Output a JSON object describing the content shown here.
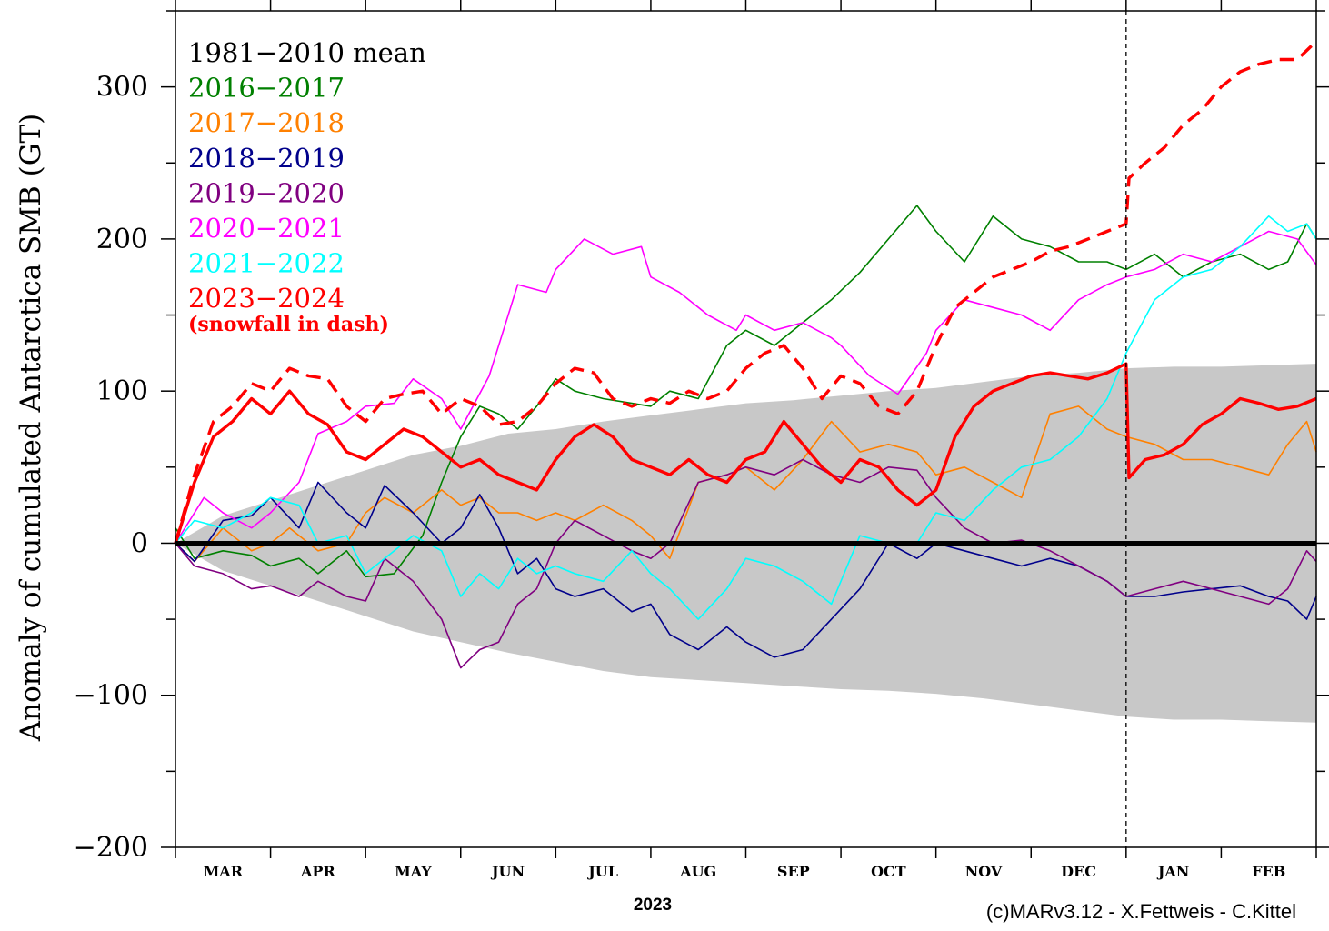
{
  "chart_data": {
    "type": "line",
    "ylabel": "Anomaly of cumulated Antarctica SMB (GT)",
    "xlabel": "2023",
    "credit": "(c)MARv3.12 - X.Fettweis - C.Kittel",
    "ylim": [
      -200,
      350
    ],
    "xlim": [
      0,
      12
    ],
    "y_ticks": [
      -200,
      -100,
      0,
      100,
      200,
      300
    ],
    "months": [
      "MAR",
      "APR",
      "MAY",
      "JUN",
      "JUL",
      "AUG",
      "SEP",
      "OCT",
      "NOV",
      "DEC",
      "JAN",
      "FEB"
    ],
    "year_boundary": 10,
    "grid": false,
    "legend_placement": "top-left",
    "envelope": {
      "color": "#c8c8c8",
      "x": [
        0,
        0.5,
        1,
        1.5,
        2,
        2.5,
        3,
        3.5,
        4,
        4.5,
        5,
        5.5,
        6,
        6.5,
        7,
        7.5,
        8,
        8.5,
        9,
        9.5,
        10,
        10.5,
        11,
        11.5,
        12
      ],
      "upper": [
        0,
        18,
        28,
        38,
        48,
        58,
        64,
        72,
        75,
        80,
        84,
        88,
        92,
        94,
        97,
        100,
        102,
        106,
        110,
        112,
        115,
        116,
        116,
        117,
        118
      ],
      "lower": [
        0,
        -18,
        -28,
        -38,
        -48,
        -58,
        -65,
        -72,
        -78,
        -84,
        -88,
        -90,
        -92,
        -94,
        -96,
        -97,
        -99,
        -102,
        -106,
        -110,
        -114,
        -116,
        -116,
        -117,
        -118
      ]
    },
    "mean_line": {
      "name": "1981−2010 mean",
      "color": "#000000",
      "value": 0
    },
    "series": [
      {
        "name": "2016−2017",
        "color": "#008000",
        "width": 1.6,
        "x": [
          0,
          0.2,
          0.5,
          0.8,
          1,
          1.3,
          1.5,
          1.8,
          2,
          2.3,
          2.6,
          2.8,
          3,
          3.2,
          3.4,
          3.6,
          3.8,
          4,
          4.2,
          4.5,
          4.8,
          5,
          5.2,
          5.5,
          5.8,
          6,
          6.3,
          6.6,
          6.9,
          7.2,
          7.5,
          7.8,
          8,
          8.3,
          8.6,
          8.9,
          9.2,
          9.5,
          9.8,
          10,
          10.3,
          10.6,
          10.9,
          11.2,
          11.5,
          11.7,
          11.9,
          12
        ],
        "y": [
          10,
          -10,
          -5,
          -8,
          -15,
          -10,
          -20,
          -5,
          -22,
          -20,
          5,
          40,
          70,
          90,
          85,
          75,
          90,
          108,
          100,
          95,
          92,
          90,
          100,
          95,
          130,
          140,
          130,
          145,
          160,
          178,
          200,
          222,
          205,
          185,
          215,
          200,
          195,
          185,
          185,
          180,
          190,
          175,
          185,
          190,
          180,
          185,
          210,
          200
        ]
      },
      {
        "name": "2017−2018",
        "color": "#ff8000",
        "width": 1.6,
        "x": [
          0,
          0.2,
          0.5,
          0.8,
          1,
          1.2,
          1.5,
          1.8,
          2,
          2.2,
          2.5,
          2.8,
          3,
          3.2,
          3.4,
          3.6,
          3.8,
          4,
          4.2,
          4.5,
          4.8,
          5,
          5.2,
          5.5,
          5.8,
          6,
          6.3,
          6.6,
          6.9,
          7.2,
          7.5,
          7.8,
          8,
          8.3,
          8.6,
          8.9,
          9.2,
          9.5,
          9.8,
          10,
          10.3,
          10.6,
          10.9,
          11.2,
          11.5,
          11.7,
          11.9,
          12
        ],
        "y": [
          0,
          -12,
          10,
          -5,
          0,
          10,
          -5,
          0,
          20,
          30,
          20,
          35,
          25,
          30,
          20,
          20,
          15,
          20,
          15,
          25,
          15,
          5,
          -10,
          40,
          45,
          50,
          35,
          55,
          80,
          60,
          65,
          60,
          45,
          50,
          40,
          30,
          85,
          90,
          75,
          70,
          65,
          55,
          55,
          50,
          45,
          65,
          80,
          60
        ]
      },
      {
        "name": "2018−2019",
        "color": "#00008b",
        "width": 1.6,
        "x": [
          0,
          0.2,
          0.5,
          0.8,
          1,
          1.3,
          1.5,
          1.8,
          2,
          2.2,
          2.5,
          2.8,
          3,
          3.2,
          3.4,
          3.6,
          3.8,
          4,
          4.2,
          4.5,
          4.8,
          5,
          5.2,
          5.5,
          5.8,
          6,
          6.3,
          6.6,
          6.9,
          7.2,
          7.5,
          7.8,
          8,
          8.3,
          8.6,
          8.9,
          9.2,
          9.5,
          9.8,
          10,
          10.3,
          10.6,
          10.9,
          11.2,
          11.5,
          11.7,
          11.9,
          12
        ],
        "y": [
          0,
          -12,
          15,
          18,
          30,
          10,
          40,
          20,
          10,
          38,
          20,
          0,
          10,
          32,
          10,
          -20,
          -10,
          -30,
          -35,
          -30,
          -45,
          -40,
          -60,
          -70,
          -55,
          -65,
          -75,
          -70,
          -50,
          -30,
          0,
          -10,
          0,
          -5,
          -10,
          -15,
          -10,
          -15,
          -25,
          -35,
          -35,
          -32,
          -30,
          -28,
          -35,
          -38,
          -50,
          -35
        ]
      },
      {
        "name": "2019−2020",
        "color": "#800080",
        "width": 1.6,
        "x": [
          0,
          0.2,
          0.5,
          0.8,
          1,
          1.3,
          1.5,
          1.8,
          2,
          2.2,
          2.5,
          2.8,
          3,
          3.2,
          3.4,
          3.6,
          3.8,
          4,
          4.2,
          4.5,
          4.8,
          5,
          5.2,
          5.5,
          5.8,
          6,
          6.3,
          6.6,
          6.9,
          7.2,
          7.5,
          7.8,
          8,
          8.3,
          8.6,
          8.9,
          9.2,
          9.5,
          9.8,
          10,
          10.3,
          10.6,
          10.9,
          11.2,
          11.5,
          11.7,
          11.9,
          12
        ],
        "y": [
          0,
          -15,
          -20,
          -30,
          -28,
          -35,
          -25,
          -35,
          -38,
          -10,
          -25,
          -50,
          -82,
          -70,
          -65,
          -40,
          -30,
          0,
          15,
          5,
          -5,
          -10,
          0,
          40,
          45,
          50,
          45,
          55,
          45,
          40,
          50,
          48,
          30,
          10,
          0,
          2,
          -5,
          -15,
          -25,
          -35,
          -30,
          -25,
          -30,
          -35,
          -40,
          -30,
          -5,
          -12
        ]
      },
      {
        "name": "2020−2021",
        "color": "#ff00ff",
        "width": 1.6,
        "x": [
          0,
          0.3,
          0.5,
          0.8,
          1,
          1.3,
          1.5,
          1.8,
          2,
          2.3,
          2.5,
          2.8,
          3,
          3.3,
          3.6,
          3.9,
          4,
          4.3,
          4.6,
          4.9,
          5,
          5.3,
          5.6,
          5.9,
          6,
          6.3,
          6.6,
          6.9,
          7,
          7.3,
          7.6,
          7.9,
          8,
          8.3,
          8.6,
          8.9,
          9.2,
          9.5,
          9.8,
          10,
          10.3,
          10.6,
          10.9,
          11.2,
          11.5,
          11.8,
          12
        ],
        "y": [
          0,
          30,
          20,
          10,
          20,
          40,
          72,
          80,
          90,
          92,
          108,
          95,
          75,
          110,
          170,
          165,
          180,
          200,
          190,
          195,
          175,
          165,
          150,
          140,
          150,
          140,
          145,
          135,
          130,
          110,
          98,
          125,
          140,
          160,
          155,
          150,
          140,
          160,
          170,
          175,
          180,
          190,
          185,
          195,
          205,
          200,
          183
        ]
      },
      {
        "name": "2021−2022",
        "color": "#00ffff",
        "width": 1.6,
        "x": [
          0,
          0.2,
          0.5,
          0.8,
          1,
          1.3,
          1.5,
          1.8,
          2,
          2.2,
          2.5,
          2.8,
          3,
          3.2,
          3.4,
          3.6,
          3.8,
          4,
          4.2,
          4.5,
          4.8,
          5,
          5.2,
          5.5,
          5.8,
          6,
          6.3,
          6.6,
          6.9,
          7.2,
          7.5,
          7.8,
          8,
          8.3,
          8.6,
          8.9,
          9.2,
          9.5,
          9.8,
          10,
          10.3,
          10.6,
          10.9,
          11.2,
          11.5,
          11.7,
          11.9,
          12
        ],
        "y": [
          0,
          15,
          10,
          20,
          30,
          25,
          0,
          5,
          -20,
          -10,
          5,
          -5,
          -35,
          -20,
          -30,
          -10,
          -20,
          -15,
          -20,
          -25,
          -5,
          -20,
          -30,
          -50,
          -30,
          -10,
          -15,
          -25,
          -40,
          5,
          0,
          0,
          20,
          15,
          35,
          50,
          55,
          70,
          95,
          125,
          160,
          175,
          180,
          195,
          215,
          205,
          210,
          200
        ]
      },
      {
        "name": "2023−2024",
        "color": "#ff0000",
        "width": 3.4,
        "x": [
          0,
          0.2,
          0.4,
          0.6,
          0.8,
          1,
          1.2,
          1.4,
          1.6,
          1.8,
          2,
          2.2,
          2.4,
          2.6,
          2.8,
          3,
          3.2,
          3.4,
          3.6,
          3.8,
          4,
          4.2,
          4.4,
          4.6,
          4.8,
          5,
          5.2,
          5.4,
          5.6,
          5.8,
          6,
          6.2,
          6.4,
          6.6,
          6.8,
          7,
          7.2,
          7.4,
          7.6,
          7.8,
          8,
          8.2,
          8.4,
          8.6,
          8.8,
          9,
          9.2,
          9.4,
          9.6,
          9.8,
          10,
          10.03,
          10.2,
          10.4,
          10.6,
          10.8,
          11,
          11.2,
          11.4,
          11.6,
          11.8,
          12
        ],
        "y": [
          0,
          40,
          70,
          80,
          95,
          85,
          100,
          85,
          78,
          60,
          55,
          65,
          75,
          70,
          60,
          50,
          55,
          45,
          40,
          35,
          55,
          70,
          78,
          70,
          55,
          50,
          45,
          55,
          45,
          40,
          55,
          60,
          80,
          65,
          50,
          40,
          55,
          50,
          35,
          25,
          35,
          70,
          90,
          100,
          105,
          110,
          112,
          110,
          108,
          112,
          118,
          43,
          55,
          58,
          65,
          78,
          85,
          95,
          92,
          88,
          90,
          95
        ]
      },
      {
        "name": "2023−2024 snowfall",
        "color": "#ff0000",
        "width": 3.4,
        "dash": true,
        "x": [
          0,
          0.2,
          0.4,
          0.6,
          0.8,
          1,
          1.2,
          1.4,
          1.6,
          1.8,
          2,
          2.2,
          2.4,
          2.6,
          2.8,
          3,
          3.2,
          3.4,
          3.6,
          3.8,
          4,
          4.2,
          4.4,
          4.6,
          4.8,
          5,
          5.2,
          5.4,
          5.6,
          5.8,
          6,
          6.2,
          6.4,
          6.6,
          6.8,
          7,
          7.2,
          7.4,
          7.6,
          7.8,
          8,
          8.2,
          8.4,
          8.6,
          8.8,
          9,
          9.2,
          9.4,
          9.6,
          9.8,
          10,
          10.03,
          10.2,
          10.4,
          10.6,
          10.8,
          11,
          11.2,
          11.4,
          11.6,
          11.8,
          12
        ],
        "y": [
          0,
          45,
          80,
          90,
          105,
          100,
          115,
          110,
          108,
          90,
          80,
          95,
          98,
          100,
          85,
          95,
          90,
          78,
          80,
          90,
          105,
          115,
          112,
          95,
          90,
          95,
          92,
          100,
          95,
          100,
          115,
          125,
          130,
          115,
          95,
          110,
          105,
          90,
          85,
          100,
          130,
          155,
          165,
          175,
          180,
          185,
          192,
          195,
          200,
          205,
          210,
          240,
          250,
          260,
          275,
          285,
          300,
          310,
          315,
          318,
          318,
          330
        ]
      }
    ],
    "legend": [
      {
        "label": "1981−2010 mean",
        "color": "#000000"
      },
      {
        "label": "2016−2017",
        "color": "#008000"
      },
      {
        "label": "2017−2018",
        "color": "#ff8000"
      },
      {
        "label": "2018−2019",
        "color": "#00008b"
      },
      {
        "label": "2019−2020",
        "color": "#800080"
      },
      {
        "label": "2020−2021",
        "color": "#ff00ff"
      },
      {
        "label": "2021−2022",
        "color": "#00ffff"
      },
      {
        "label": "2023−2024",
        "color": "#ff0000"
      }
    ],
    "legend_note": {
      "label": "(snowfall in dash)",
      "color": "#ff0000"
    }
  }
}
